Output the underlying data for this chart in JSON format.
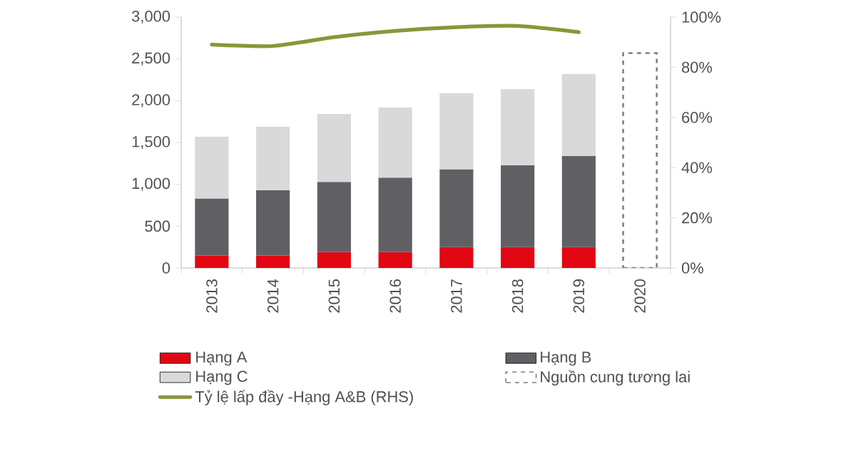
{
  "chart_data": {
    "type": "bar",
    "stacked": true,
    "categories": [
      "2013",
      "2014",
      "2015",
      "2016",
      "2017",
      "2018",
      "2019",
      "2020"
    ],
    "series": [
      {
        "name": "Hạng A",
        "color": "#e30613",
        "values": [
          150,
          150,
          190,
          190,
          250,
          250,
          250,
          null
        ]
      },
      {
        "name": "Hạng B",
        "color": "#606064",
        "values": [
          680,
          780,
          840,
          890,
          930,
          980,
          1090,
          null
        ]
      },
      {
        "name": "Hạng C",
        "color": "#d9d9d9",
        "values": [
          740,
          760,
          810,
          840,
          910,
          910,
          980,
          null
        ]
      },
      {
        "name": "Nguồn cung tương lai",
        "color": "#808080",
        "line_style": "dashed",
        "values": [
          null,
          null,
          null,
          null,
          null,
          null,
          null,
          2570
        ]
      },
      {
        "name": "Tỷ lệ lấp đầy -Hạng A&B (RHS)",
        "type": "line",
        "axis": "y2",
        "color": "#8c9538",
        "values": [
          89,
          88.5,
          92,
          94.5,
          96,
          96.5,
          94,
          null
        ]
      }
    ],
    "ylim": [
      0,
      3000
    ],
    "yticks": [
      {
        "value": 0,
        "label": "0"
      },
      {
        "value": 500,
        "label": "500"
      },
      {
        "value": 1000,
        "label": "1,000"
      },
      {
        "value": 1500,
        "label": "1,500"
      },
      {
        "value": 2000,
        "label": "2,000"
      },
      {
        "value": 2500,
        "label": "2,500"
      },
      {
        "value": 3000,
        "label": "3,000"
      }
    ],
    "y2lim": [
      0,
      100
    ],
    "y2ticks": [
      {
        "value": 0,
        "label": "0%"
      },
      {
        "value": 20,
        "label": "20%"
      },
      {
        "value": 40,
        "label": "40%"
      },
      {
        "value": 60,
        "label": "60%"
      },
      {
        "value": 80,
        "label": "80%"
      },
      {
        "value": 100,
        "label": "100%"
      }
    ],
    "legend": "bottom",
    "grid": false,
    "marker": "none"
  }
}
